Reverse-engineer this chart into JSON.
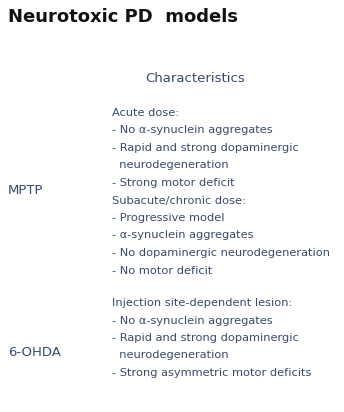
{
  "title": "Neurotoxic PD  models",
  "title_fontsize": 13,
  "title_color": "#111111",
  "background_color": "#ffffff",
  "text_color": "#3a4a6b",
  "characteristics_label": "Characteristics",
  "characteristics_fontsize": 9.5,
  "mptp_label": "MPTP",
  "ohda_label": "6-OHDA",
  "model_fontsize": 9.5,
  "content_fontsize": 8.2,
  "mptp_lines": [
    [
      "Acute dose:",
      false
    ],
    [
      "- No α-synuclein aggregates",
      false
    ],
    [
      "- Rapid and strong dopaminergic",
      false
    ],
    [
      "  neurodegeneration",
      false
    ],
    [
      "- Strong motor deficit",
      false
    ],
    [
      "Subacute/chronic dose:",
      false
    ],
    [
      "- Progressive model",
      false
    ],
    [
      "- α-synuclein aggregates",
      false
    ],
    [
      "- No dopaminergic neurodegeneration",
      false
    ],
    [
      "- No motor deficit",
      false
    ]
  ],
  "ohda_lines": [
    [
      "Injection site-dependent lesion:",
      false
    ],
    [
      "- No α-synuclein aggregates",
      false
    ],
    [
      "- Rapid and strong dopaminergic",
      false
    ],
    [
      "  neurodegeneration",
      false
    ],
    [
      "- Strong asymmetric motor deficits",
      false
    ]
  ],
  "line_color": "#cccccc",
  "line_lw": 0.6
}
